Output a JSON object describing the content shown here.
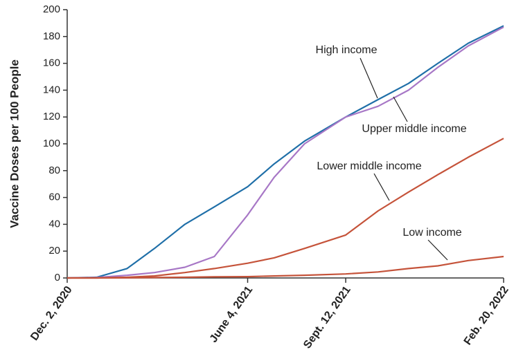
{
  "chart_data": {
    "type": "line",
    "y_label": "Vaccine Doses per 100 People",
    "x": [
      "2020-12-02",
      "2021-01-01",
      "2021-02-01",
      "2021-03-01",
      "2021-04-01",
      "2021-05-01",
      "2021-06-04",
      "2021-07-01",
      "2021-08-01",
      "2021-09-12",
      "2021-10-15",
      "2021-11-15",
      "2021-12-15",
      "2022-01-15",
      "2022-02-20"
    ],
    "series": [
      {
        "name": "High income",
        "color": "#1f6fa8",
        "values": [
          0,
          0.5,
          7,
          22,
          40,
          53,
          68,
          85,
          102,
          120,
          133,
          145,
          160,
          175,
          188
        ]
      },
      {
        "name": "Upper middle income",
        "color": "#a777c6",
        "values": [
          0,
          0.3,
          2,
          4,
          8,
          16,
          47,
          75,
          100,
          120,
          128,
          140,
          157,
          173,
          187
        ]
      },
      {
        "name": "Lower middle income",
        "color": "#c5533a",
        "values": [
          0,
          0,
          0.5,
          1.5,
          4,
          7,
          11,
          15,
          22,
          32,
          50,
          64,
          77,
          90,
          104
        ]
      },
      {
        "name": "Low income",
        "color": "#c5533a",
        "values": [
          0,
          0,
          0.1,
          0.3,
          0.5,
          0.8,
          1,
          1.5,
          2,
          3,
          4.5,
          7,
          9,
          13,
          16
        ]
      }
    ],
    "xlim": [
      "2020-12-02",
      "2022-02-20"
    ],
    "xticks": [
      {
        "value": "2020-12-02",
        "label": "Dec. 2, 2020"
      },
      {
        "value": "2021-06-04",
        "label": "June 4, 2021"
      },
      {
        "value": "2021-09-12",
        "label": "Sept. 12, 2021"
      },
      {
        "value": "2022-02-20",
        "label": "Feb. 20, 2022"
      }
    ],
    "ylim": [
      0,
      200
    ],
    "yticks": [
      0,
      20,
      40,
      60,
      80,
      100,
      120,
      140,
      160,
      180,
      200
    ],
    "grid": false
  }
}
